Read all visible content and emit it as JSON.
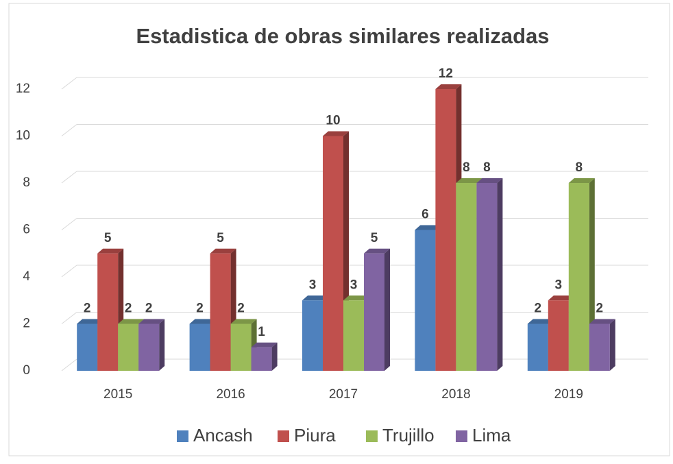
{
  "chart_data": {
    "type": "bar3d",
    "title": "Estadistica de obras similares realizadas",
    "categories": [
      "2015",
      "2016",
      "2017",
      "2018",
      "2019"
    ],
    "series": [
      {
        "name": "Ancash",
        "color": "#4f81bd",
        "values": [
          2,
          2,
          3,
          6,
          2
        ]
      },
      {
        "name": "Piura",
        "color": "#c0504d",
        "values": [
          5,
          5,
          10,
          12,
          3
        ]
      },
      {
        "name": "Trujillo",
        "color": "#9bbb59",
        "values": [
          2,
          2,
          3,
          8,
          8
        ]
      },
      {
        "name": "Lima",
        "color": "#8064a2",
        "values": [
          2,
          1,
          5,
          8,
          2
        ]
      }
    ],
    "ylim": [
      0,
      12
    ],
    "yticks": [
      0,
      2,
      4,
      6,
      8,
      10,
      12
    ],
    "grid": true,
    "legend": "bottom"
  }
}
